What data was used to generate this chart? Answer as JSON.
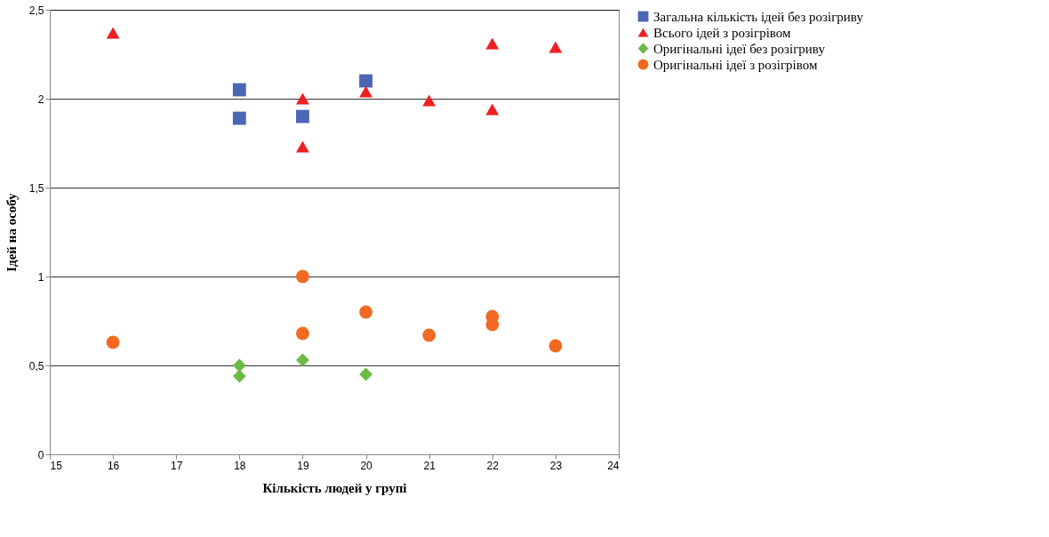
{
  "chart_data": {
    "type": "scatter",
    "xlabel": "Кількість людей у групі",
    "ylabel": "Ідей на особу",
    "xlim": [
      15,
      24
    ],
    "xticks": [
      15,
      16,
      17,
      18,
      19,
      20,
      21,
      22,
      23,
      24
    ],
    "ylim": [
      0,
      2.5
    ],
    "yticks": [
      0,
      {
        "value": 0.5,
        "label": "0,5"
      },
      1,
      {
        "value": 1.5,
        "label": "1,5"
      },
      2,
      {
        "value": 2.5,
        "label": "2,5"
      }
    ],
    "grid": "y",
    "legend": "right",
    "series": [
      {
        "name": "Загальна кількість ідей без розігриву",
        "color": "#4a66b4",
        "marker": "square",
        "x": [
          18,
          18,
          19,
          20
        ],
        "values": [
          2.05,
          1.89,
          1.9,
          2.1
        ]
      },
      {
        "name": "Всього ідей з розігрівом",
        "color": "#ee2024",
        "marker": "triangle",
        "x": [
          16,
          19,
          19,
          20,
          21,
          22,
          22,
          23
        ],
        "values": [
          2.37,
          2.0,
          1.73,
          2.04,
          1.99,
          2.31,
          1.94,
          2.29
        ]
      },
      {
        "name": "Оригінальні ідеї без розігриву",
        "color": "#6cbb45",
        "marker": "diamond",
        "x": [
          18,
          18,
          19,
          20
        ],
        "values": [
          0.5,
          0.44,
          0.53,
          0.45
        ]
      },
      {
        "name": "Оригінальні ідеї з розігрівом",
        "color": "#f26a22",
        "marker": "circle",
        "x": [
          16,
          19,
          19,
          20,
          21,
          22,
          22,
          23
        ],
        "values": [
          0.63,
          1.0,
          0.68,
          0.8,
          0.67,
          0.775,
          0.73,
          0.61
        ]
      }
    ]
  }
}
